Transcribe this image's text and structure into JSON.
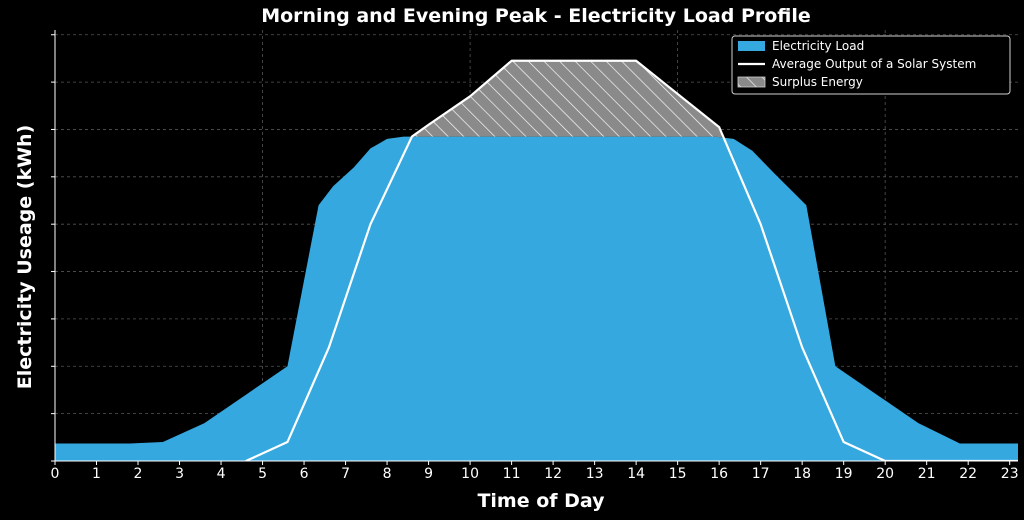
{
  "chart_data": {
    "type": "area",
    "title": "Morning and Evening Peak - Electricity Load Profile",
    "xlabel": "Time of Day",
    "ylabel": "Electricity Useage (kWh)",
    "x_ticks": [
      0,
      1,
      2,
      3,
      4,
      5,
      6,
      7,
      8,
      9,
      10,
      11,
      12,
      13,
      14,
      15,
      16,
      17,
      18,
      19,
      20,
      21,
      22,
      23
    ],
    "xlim": [
      0,
      23.2
    ],
    "ylim": [
      0,
      9.1
    ],
    "grid": true,
    "legend_position": "top-right",
    "colors": {
      "load": "#35a8e0",
      "solar": "#ffffff",
      "surplus": "#8a8a8a",
      "background": "#000000"
    },
    "series": [
      {
        "name": "Electricity Load",
        "x": [
          0,
          1.8,
          2.6,
          3.6,
          4.6,
          5.6,
          6.35,
          6.7,
          7.2,
          7.6,
          8,
          8.4,
          9,
          10,
          11,
          12,
          13,
          14,
          15,
          15.9,
          16.35,
          16.8,
          17.3,
          18.1,
          18.8,
          19.8,
          20.8,
          21.8,
          23.2
        ],
        "values": [
          0.37,
          0.37,
          0.4,
          0.8,
          1.4,
          2.0,
          5.4,
          5.8,
          6.2,
          6.6,
          6.8,
          6.85,
          6.85,
          6.85,
          6.85,
          6.85,
          6.85,
          6.85,
          6.85,
          6.85,
          6.8,
          6.55,
          6.1,
          5.4,
          2.0,
          1.4,
          0.8,
          0.37,
          0.37
        ]
      },
      {
        "name": "Average Output of a Solar System",
        "x": [
          4.6,
          5.6,
          6.6,
          7.6,
          8.6,
          9,
          10,
          11,
          12,
          13,
          14,
          15,
          16,
          17,
          18,
          19,
          20,
          23.2
        ],
        "values": [
          0,
          0.4,
          2.4,
          5.0,
          6.85,
          7.1,
          7.7,
          8.45,
          8.45,
          8.45,
          8.45,
          7.75,
          7.05,
          5.0,
          2.4,
          0.4,
          0,
          0
        ]
      },
      {
        "name": "Surplus Energy"
      }
    ]
  }
}
